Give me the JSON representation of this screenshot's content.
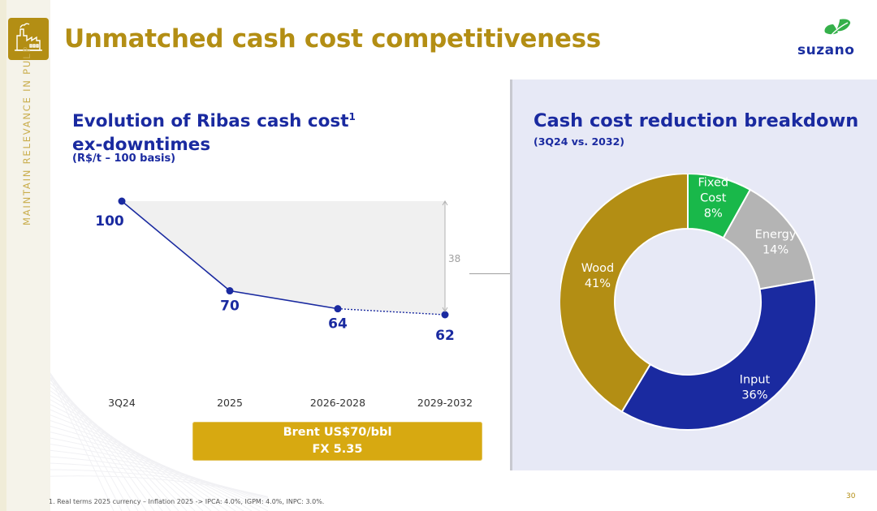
{
  "header": {
    "title": "Unmatched cash cost competitiveness",
    "section_label": "MAINTAIN RELEVANCE IN PULP",
    "logo_text": "suzano",
    "icon": "factory-icon"
  },
  "left": {
    "title_line1": "Evolution of Ribas cash cost",
    "title_sup": "1",
    "title_line2": "ex-downtimes",
    "subtitle": "(R$/t – 100 basis)",
    "assumptions_line1": "Brent US$70/bbl",
    "assumptions_line2": "FX 5.35"
  },
  "right": {
    "title": "Cash cost reduction breakdown",
    "subtitle": "(3Q24 vs. 2032)"
  },
  "footnote": "1. Real terms 2025 currency – Inflation 2025 -> IPCA: 4.0%, IGPM: 4.0%, INPC: 3.0%.",
  "page_number": "30",
  "colors": {
    "gold": "#b38e14",
    "navy": "#1a2aa0",
    "green": "#19b84a",
    "gray": "#b4b4b4"
  },
  "chart_data": [
    {
      "type": "line",
      "categories": [
        "3Q24",
        "2025",
        "2026-2028",
        "2029-2032"
      ],
      "values": [
        100,
        70,
        64,
        62
      ],
      "data_labels": [
        "100",
        "70",
        "64",
        "62"
      ],
      "gap_label": "38",
      "gap_value": 38,
      "projected_from_index": 2,
      "ylim": [
        55,
        105
      ]
    },
    {
      "type": "pie",
      "variant": "donut",
      "slices": [
        {
          "label": "Fixed Cost",
          "value": 8,
          "pct_label": "8%",
          "color": "#19b84a"
        },
        {
          "label": "Energy",
          "value": 14,
          "pct_label": "14%",
          "color": "#b4b4b4"
        },
        {
          "label": "Input",
          "value": 36,
          "pct_label": "36%",
          "color": "#1a2aa0"
        },
        {
          "label": "Wood",
          "value": 41,
          "pct_label": "41%",
          "color": "#b38e14"
        }
      ]
    }
  ]
}
